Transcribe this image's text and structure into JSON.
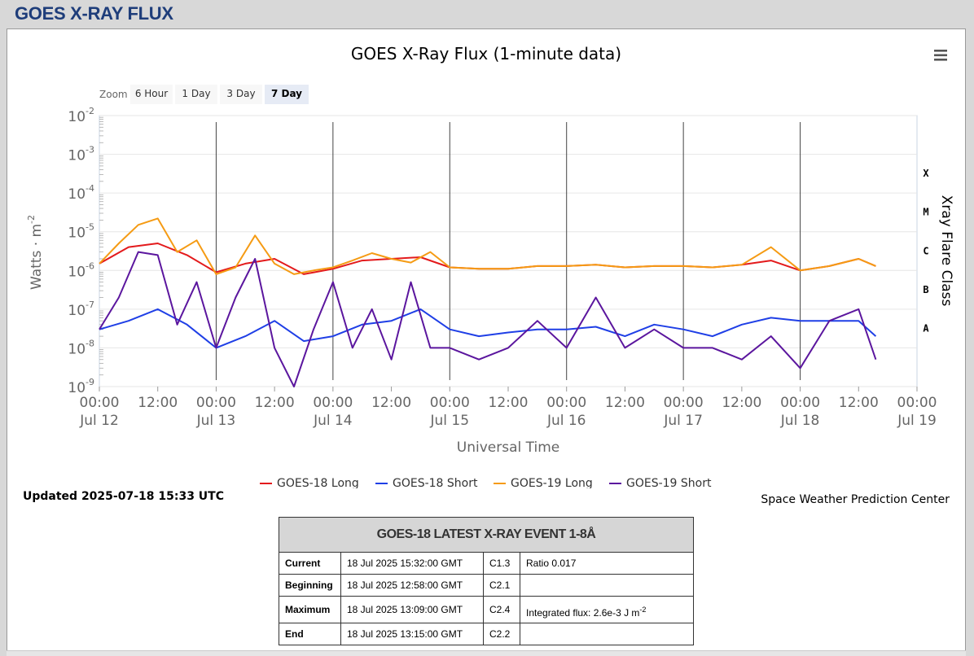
{
  "page": {
    "title": "GOES X-RAY FLUX"
  },
  "updated": "Updated 2025-07-18 15:33 UTC",
  "credit": "Space Weather Prediction Center",
  "zoom": {
    "label": "Zoom",
    "buttons": [
      "6 Hour",
      "1 Day",
      "3 Day",
      "7 Day"
    ],
    "selected": "7 Day"
  },
  "icons": {
    "menu": "hamburger-menu-icon"
  },
  "colors": {
    "goes18_long": "#e31a1c",
    "goes18_short": "#1f3fe6",
    "goes19_long": "#f59b14",
    "goes19_short": "#5b169e"
  },
  "chart_data": {
    "type": "line",
    "title": "GOES X-Ray Flux (1-minute data)",
    "xlabel": "Universal Time",
    "ylabel": "Watts · m",
    "ylabel_sup": "-2",
    "y_right_label": "Xray Flare Class",
    "y_scale": "log",
    "ylim": [
      1e-09,
      0.01
    ],
    "y_ticks": [
      {
        "base": "10",
        "exp": "-2"
      },
      {
        "base": "10",
        "exp": "-3"
      },
      {
        "base": "10",
        "exp": "-4"
      },
      {
        "base": "10",
        "exp": "-5"
      },
      {
        "base": "10",
        "exp": "-6"
      },
      {
        "base": "10",
        "exp": "-7"
      },
      {
        "base": "10",
        "exp": "-8"
      },
      {
        "base": "10",
        "exp": "-9"
      }
    ],
    "flare_classes": [
      "X",
      "M",
      "C",
      "B",
      "A"
    ],
    "x_range": [
      "2025-07-12 00:00",
      "2025-07-19 00:00"
    ],
    "x_tick_labels": [
      {
        "time": "00:00",
        "date": "Jul 12"
      },
      {
        "time": "12:00",
        "date": ""
      },
      {
        "time": "00:00",
        "date": "Jul 13"
      },
      {
        "time": "12:00",
        "date": ""
      },
      {
        "time": "00:00",
        "date": "Jul 14"
      },
      {
        "time": "12:00",
        "date": ""
      },
      {
        "time": "00:00",
        "date": "Jul 15"
      },
      {
        "time": "12:00",
        "date": ""
      },
      {
        "time": "00:00",
        "date": "Jul 16"
      },
      {
        "time": "12:00",
        "date": ""
      },
      {
        "time": "00:00",
        "date": "Jul 17"
      },
      {
        "time": "12:00",
        "date": ""
      },
      {
        "time": "00:00",
        "date": "Jul 18"
      },
      {
        "time": "12:00",
        "date": ""
      },
      {
        "time": "00:00",
        "date": "Jul 19"
      }
    ],
    "series": [
      {
        "name": "GOES-18 Long",
        "x": [
          "2025-07-12 00:00",
          "2025-07-12 06:00",
          "2025-07-12 12:00",
          "2025-07-12 18:00",
          "2025-07-13 00:00",
          "2025-07-13 06:00",
          "2025-07-13 12:00",
          "2025-07-13 18:00",
          "2025-07-14 00:00",
          "2025-07-14 06:00",
          "2025-07-14 12:00",
          "2025-07-14 18:00",
          "2025-07-15 00:00",
          "2025-07-15 06:00",
          "2025-07-15 12:00",
          "2025-07-15 18:00",
          "2025-07-16 00:00",
          "2025-07-16 06:00",
          "2025-07-16 12:00",
          "2025-07-16 18:00",
          "2025-07-17 00:00",
          "2025-07-17 06:00",
          "2025-07-17 12:00",
          "2025-07-17 18:00",
          "2025-07-18 00:00",
          "2025-07-18 06:00",
          "2025-07-18 12:00",
          "2025-07-18 15:32"
        ],
        "y": [
          1.5e-06,
          4e-06,
          5e-06,
          2.5e-06,
          9e-07,
          1.5e-06,
          2e-06,
          8e-07,
          1.1e-06,
          1.8e-06,
          2e-06,
          2.2e-06,
          1.2e-06,
          1.1e-06,
          1.1e-06,
          1.3e-06,
          1.3e-06,
          1.4e-06,
          1.2e-06,
          1.3e-06,
          1.3e-06,
          1.2e-06,
          1.4e-06,
          1.8e-06,
          1e-06,
          1.3e-06,
          2e-06,
          1.3e-06
        ]
      },
      {
        "name": "GOES-18 Short",
        "x": [
          "2025-07-12 00:00",
          "2025-07-12 06:00",
          "2025-07-12 12:00",
          "2025-07-12 18:00",
          "2025-07-13 00:00",
          "2025-07-13 06:00",
          "2025-07-13 12:00",
          "2025-07-13 18:00",
          "2025-07-14 00:00",
          "2025-07-14 06:00",
          "2025-07-14 12:00",
          "2025-07-14 18:00",
          "2025-07-15 00:00",
          "2025-07-15 06:00",
          "2025-07-15 12:00",
          "2025-07-15 18:00",
          "2025-07-16 00:00",
          "2025-07-16 06:00",
          "2025-07-16 12:00",
          "2025-07-16 18:00",
          "2025-07-17 00:00",
          "2025-07-17 06:00",
          "2025-07-17 12:00",
          "2025-07-17 18:00",
          "2025-07-18 00:00",
          "2025-07-18 06:00",
          "2025-07-18 12:00",
          "2025-07-18 15:32"
        ],
        "y": [
          3e-08,
          5e-08,
          1e-07,
          4e-08,
          1e-08,
          2e-08,
          5e-08,
          1.5e-08,
          2e-08,
          4e-08,
          5e-08,
          1e-07,
          3e-08,
          2e-08,
          2.5e-08,
          3e-08,
          3e-08,
          3.5e-08,
          2e-08,
          4e-08,
          3e-08,
          2e-08,
          4e-08,
          6e-08,
          5e-08,
          5e-08,
          5e-08,
          2e-08
        ]
      },
      {
        "name": "GOES-19 Long",
        "x": [
          "2025-07-12 00:00",
          "2025-07-12 04:00",
          "2025-07-12 08:00",
          "2025-07-12 12:00",
          "2025-07-12 16:00",
          "2025-07-12 20:00",
          "2025-07-13 00:00",
          "2025-07-13 04:00",
          "2025-07-13 08:00",
          "2025-07-13 12:00",
          "2025-07-13 16:00",
          "2025-07-13 20:00",
          "2025-07-14 00:00",
          "2025-07-14 04:00",
          "2025-07-14 08:00",
          "2025-07-14 12:00",
          "2025-07-14 16:00",
          "2025-07-14 20:00",
          "2025-07-15 00:00",
          "2025-07-15 06:00",
          "2025-07-15 12:00",
          "2025-07-15 18:00",
          "2025-07-16 00:00",
          "2025-07-16 06:00",
          "2025-07-16 12:00",
          "2025-07-16 18:00",
          "2025-07-17 00:00",
          "2025-07-17 06:00",
          "2025-07-17 12:00",
          "2025-07-17 18:00",
          "2025-07-18 00:00",
          "2025-07-18 06:00",
          "2025-07-18 12:00",
          "2025-07-18 15:32"
        ],
        "y": [
          1.5e-06,
          5e-06,
          1.5e-05,
          2.2e-05,
          3e-06,
          6e-06,
          8e-07,
          1.2e-06,
          8e-06,
          1.5e-06,
          8e-07,
          1e-06,
          1.2e-06,
          1.8e-06,
          2.8e-06,
          2e-06,
          1.6e-06,
          3e-06,
          1.2e-06,
          1.1e-06,
          1.1e-06,
          1.3e-06,
          1.3e-06,
          1.4e-06,
          1.2e-06,
          1.3e-06,
          1.3e-06,
          1.2e-06,
          1.4e-06,
          4e-06,
          1e-06,
          1.3e-06,
          2e-06,
          1.3e-06
        ]
      },
      {
        "name": "GOES-19 Short",
        "x": [
          "2025-07-12 00:00",
          "2025-07-12 04:00",
          "2025-07-12 08:00",
          "2025-07-12 12:00",
          "2025-07-12 16:00",
          "2025-07-12 20:00",
          "2025-07-13 00:00",
          "2025-07-13 04:00",
          "2025-07-13 08:00",
          "2025-07-13 12:00",
          "2025-07-13 16:00",
          "2025-07-13 20:00",
          "2025-07-14 00:00",
          "2025-07-14 04:00",
          "2025-07-14 08:00",
          "2025-07-14 12:00",
          "2025-07-14 16:00",
          "2025-07-14 20:00",
          "2025-07-15 00:00",
          "2025-07-15 06:00",
          "2025-07-15 12:00",
          "2025-07-15 18:00",
          "2025-07-16 00:00",
          "2025-07-16 06:00",
          "2025-07-16 12:00",
          "2025-07-16 18:00",
          "2025-07-17 00:00",
          "2025-07-17 06:00",
          "2025-07-17 12:00",
          "2025-07-17 18:00",
          "2025-07-18 00:00",
          "2025-07-18 06:00",
          "2025-07-18 12:00",
          "2025-07-18 15:32"
        ],
        "y": [
          3e-08,
          2e-07,
          3e-06,
          2.5e-06,
          4e-08,
          5e-07,
          1e-08,
          2e-07,
          2e-06,
          1e-08,
          1e-09,
          3e-08,
          5e-07,
          1e-08,
          1e-07,
          5e-09,
          5e-07,
          1e-08,
          1e-08,
          5e-09,
          1e-08,
          5e-08,
          1e-08,
          2e-07,
          1e-08,
          3e-08,
          1e-08,
          1e-08,
          5e-09,
          2e-08,
          3e-09,
          5e-08,
          1e-07,
          5e-09
        ]
      }
    ]
  },
  "event_table": {
    "header": "GOES-18 LATEST X-RAY EVENT 1-8Å",
    "rows": [
      {
        "label": "Current",
        "time": "18 Jul 2025 15:32:00 GMT",
        "class": "C1.3",
        "extra": "Ratio 0.017",
        "extra_sup": ""
      },
      {
        "label": "Beginning",
        "time": "18 Jul 2025 12:58:00 GMT",
        "class": "C2.1",
        "extra": "",
        "extra_sup": ""
      },
      {
        "label": "Maximum",
        "time": "18 Jul 2025 13:09:00 GMT",
        "class": "C2.4",
        "extra": "Integrated flux: 2.6e-3 J m",
        "extra_sup": "-2"
      },
      {
        "label": "End",
        "time": "18 Jul 2025 13:15:00 GMT",
        "class": "C2.2",
        "extra": "",
        "extra_sup": ""
      }
    ]
  }
}
